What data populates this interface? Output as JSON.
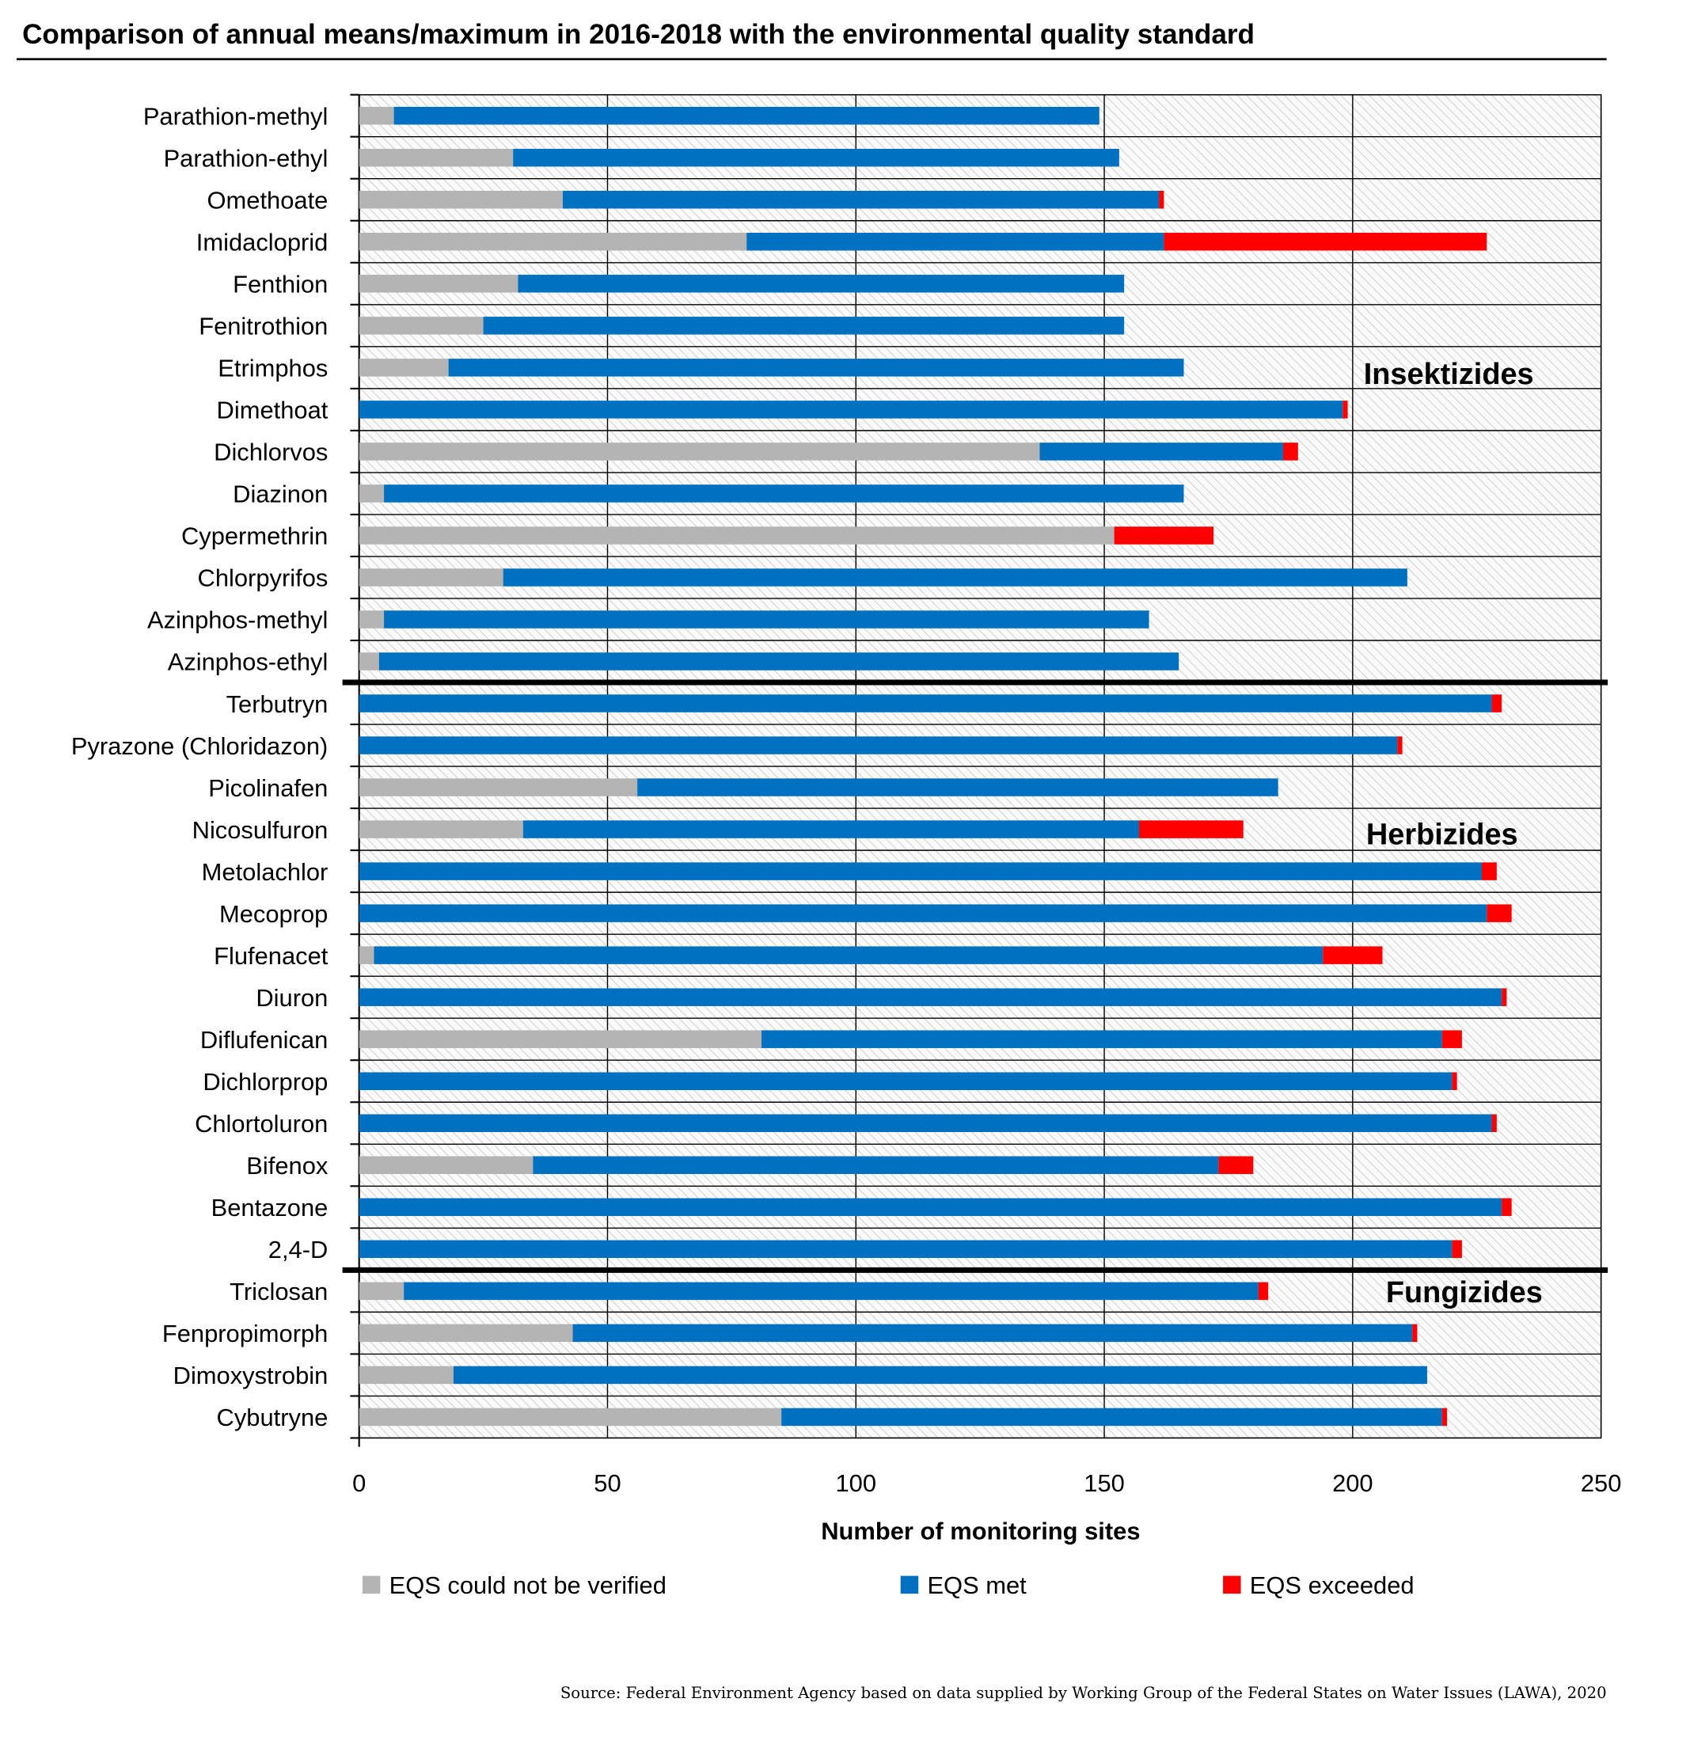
{
  "chart_data": {
    "type": "bar",
    "orientation": "horizontal",
    "stacked": true,
    "title": "Comparison of annual means/maximum in 2016-2018 with the environmental quality standard",
    "xlabel": "Number of monitoring sites",
    "ylabel": "",
    "xlim": [
      0,
      250
    ],
    "xticks": [
      "0",
      "50",
      "100",
      "150",
      "200",
      "250"
    ],
    "grid": true,
    "legend_position": "bottom",
    "categories": [
      "Parathion-methyl",
      "Parathion-ethyl",
      "Omethoate",
      "Imidacloprid",
      "Fenthion",
      "Fenitrothion",
      "Etrimphos",
      "Dimethoat",
      "Dichlorvos",
      "Diazinon",
      "Cypermethrin",
      "Chlorpyrifos",
      "Azinphos-methyl",
      "Azinphos-ethyl",
      "Terbutryn",
      "Pyrazone (Chloridazon)",
      "Picolinafen",
      "Nicosulfuron",
      "Metolachlor",
      "Mecoprop",
      "Flufenacet",
      "Diuron",
      "Diflufenican",
      "Dichlorprop",
      "Chlortoluron",
      "Bifenox",
      "Bentazone",
      "2,4-D",
      "Triclosan",
      "Fenpropimorph",
      "Dimoxystrobin",
      "Cybutryne"
    ],
    "series": [
      {
        "name": "EQS could not be verified",
        "color": "#b4b4b4",
        "values": [
          7,
          31,
          41,
          78,
          32,
          25,
          18,
          0,
          137,
          5,
          152,
          29,
          5,
          4,
          0,
          0,
          56,
          33,
          0,
          0,
          3,
          0,
          81,
          0,
          0,
          35,
          0,
          0,
          9,
          43,
          19,
          85
        ]
      },
      {
        "name": "EQS met",
        "color": "#0070c0",
        "values": [
          142,
          122,
          120,
          84,
          122,
          129,
          148,
          198,
          49,
          161,
          0,
          182,
          154,
          161,
          228,
          209,
          129,
          124,
          226,
          227,
          191,
          230,
          137,
          220,
          228,
          138,
          230,
          220,
          172,
          169,
          196,
          133
        ]
      },
      {
        "name": "EQS exceeded",
        "color": "#ff0000",
        "values": [
          0,
          0,
          1,
          65,
          0,
          0,
          0,
          1,
          3,
          0,
          20,
          0,
          0,
          0,
          2,
          1,
          0,
          21,
          3,
          5,
          12,
          1,
          4,
          1,
          1,
          7,
          2,
          2,
          2,
          1,
          0,
          1
        ]
      }
    ],
    "groups": [
      {
        "label": "Insektizides",
        "first": 0,
        "last": 13
      },
      {
        "label": "Herbizides",
        "first": 14,
        "last": 27
      },
      {
        "label": "Fungizides",
        "first": 28,
        "last": 31
      }
    ],
    "source": "Source: Federal Environment Agency based on data supplied by Working Group of the Federal States on Water Issues (LAWA), 2020"
  }
}
